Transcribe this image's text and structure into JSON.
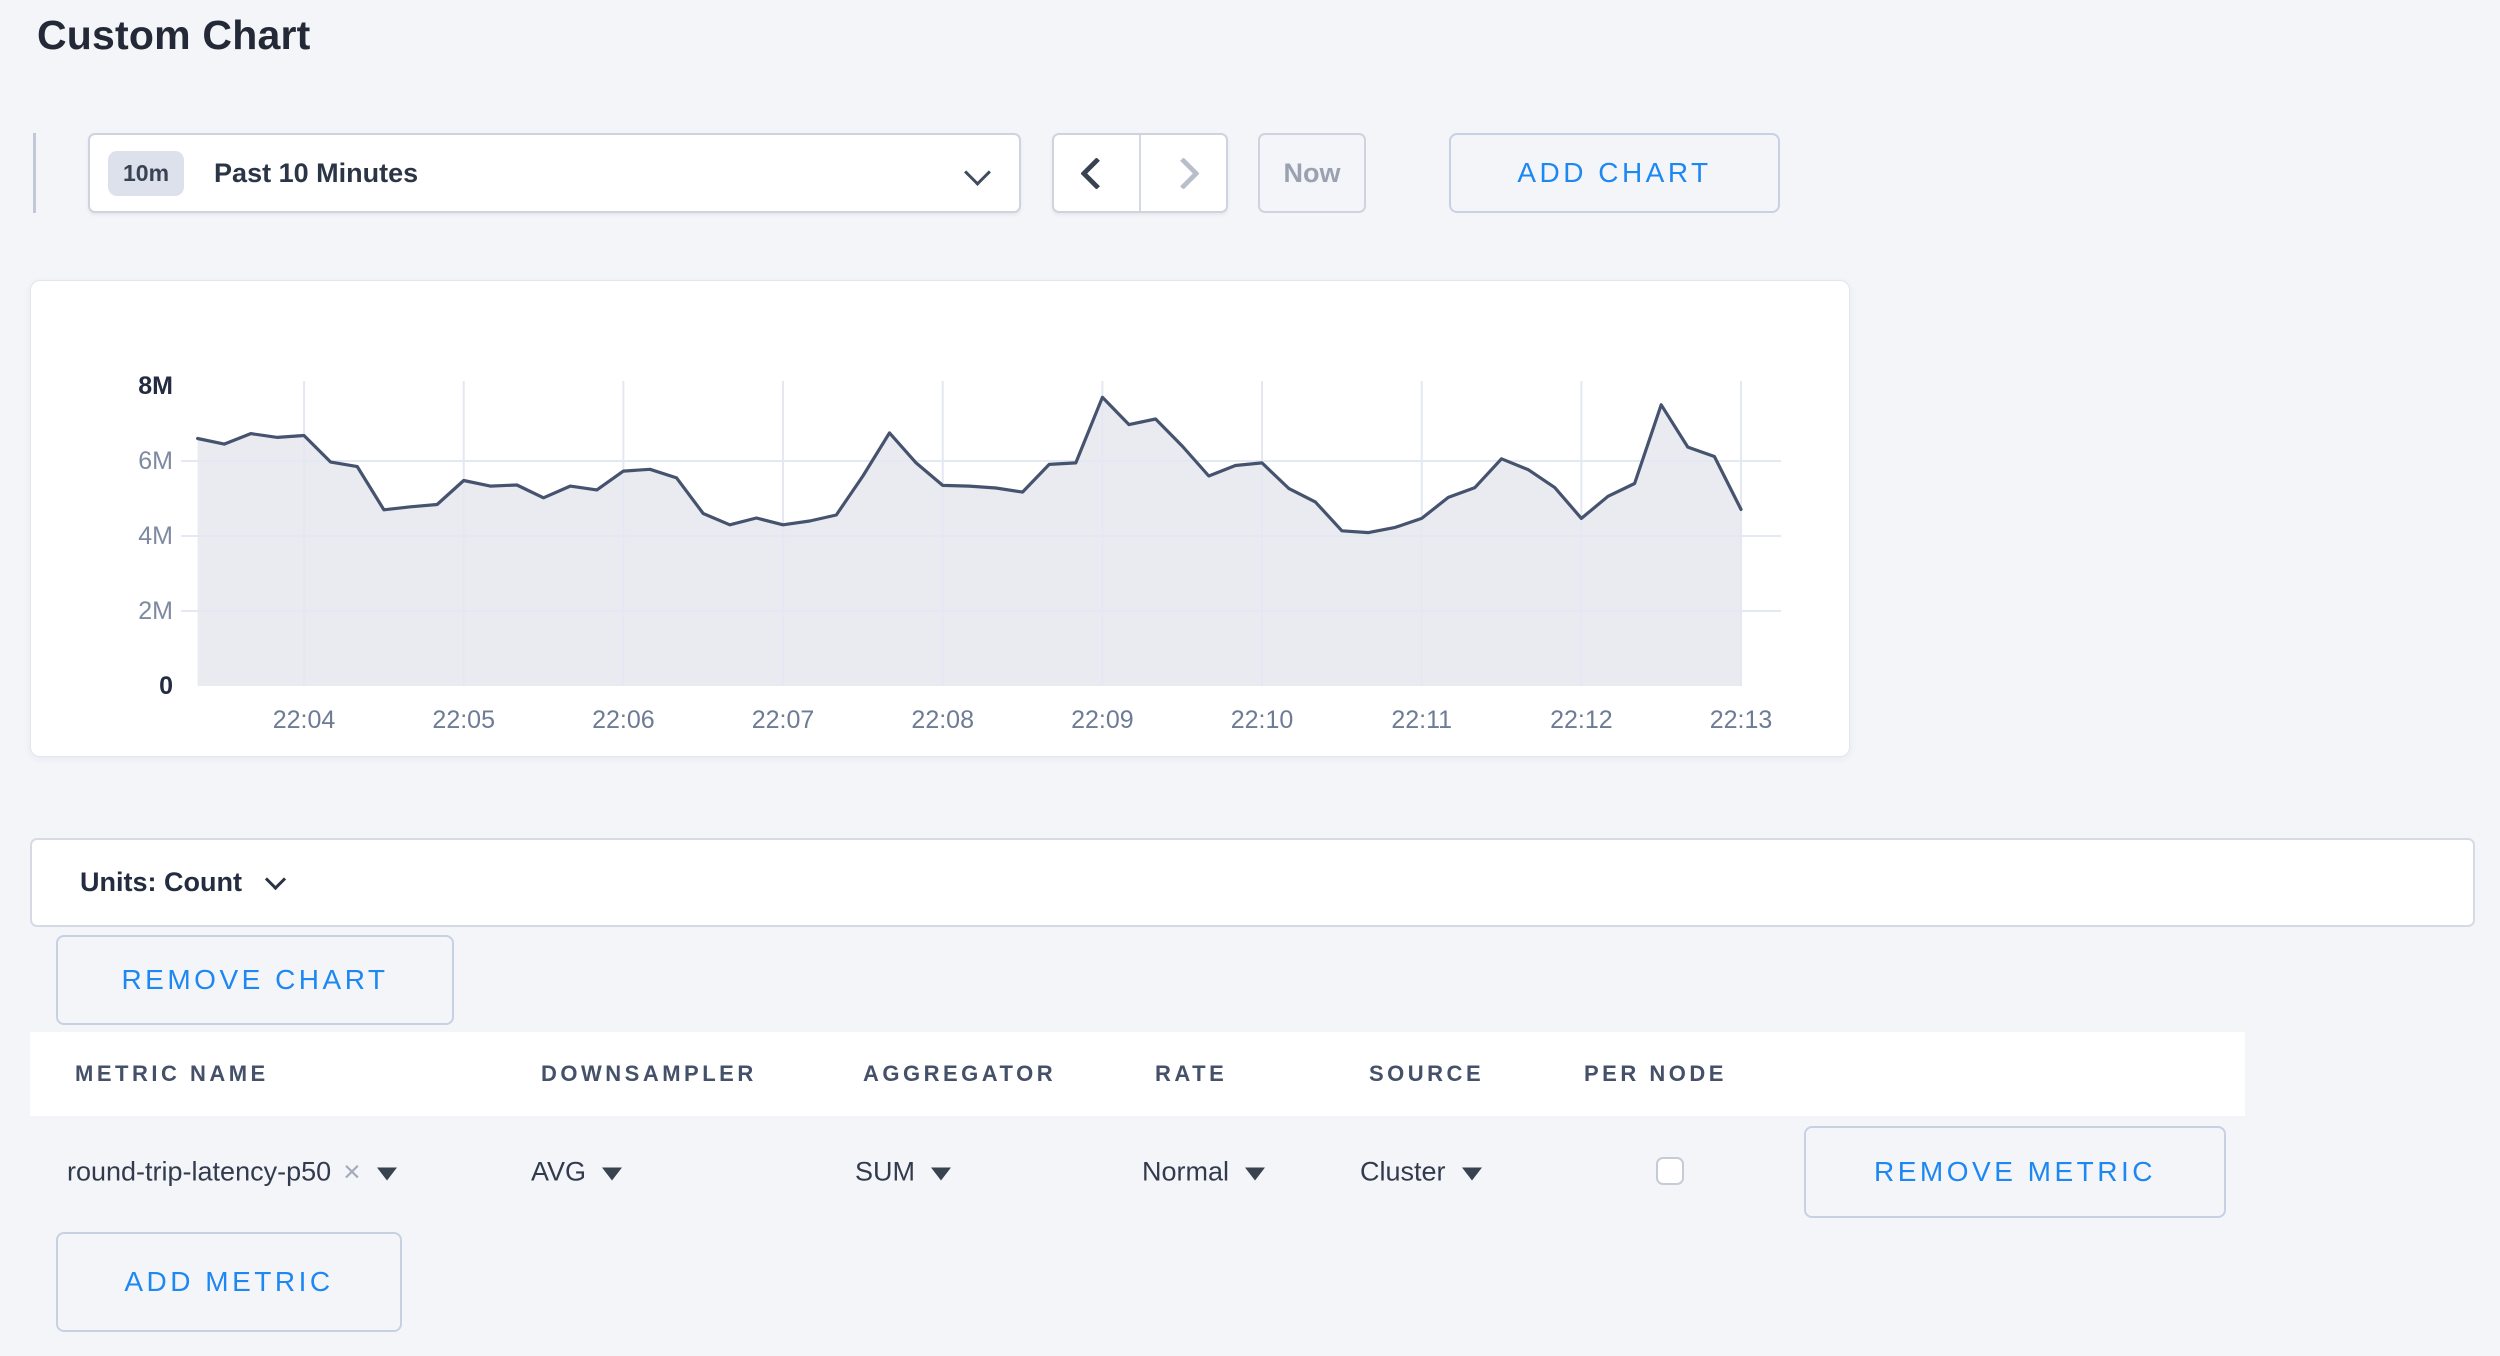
{
  "page": {
    "title": "Custom Chart",
    "background_color": "#f4f5f9",
    "accent_blue": "#1d87f2"
  },
  "toolbar": {
    "time_badge": "10m",
    "time_label": "Past 10 Minutes",
    "now_label": "Now",
    "add_chart_label": "ADD CHART"
  },
  "units_bar": {
    "label": "Units: Count"
  },
  "buttons": {
    "remove_chart": "REMOVE CHART",
    "remove_metric": "REMOVE METRIC",
    "add_metric": "ADD METRIC"
  },
  "icons": {
    "clear": "×"
  },
  "metrics_table": {
    "columns": [
      "METRIC NAME",
      "DOWNSAMPLER",
      "AGGREGATOR",
      "RATE",
      "SOURCE",
      "PER NODE"
    ],
    "rows": [
      {
        "metric_name": "round-trip-latency-p50",
        "downsampler": "AVG",
        "aggregator": "SUM",
        "rate": "Normal",
        "source": "Cluster",
        "per_node_checked": false
      }
    ]
  },
  "chart_data": {
    "type": "area",
    "title": "",
    "xlabel": "",
    "ylabel": "count",
    "start_time": "22:03:20",
    "interval_seconds": 10,
    "values_millions": [
      6.6,
      6.45,
      6.73,
      6.63,
      6.68,
      5.97,
      5.85,
      4.7,
      4.78,
      4.84,
      5.48,
      5.33,
      5.36,
      5.02,
      5.33,
      5.23,
      5.73,
      5.78,
      5.55,
      4.6,
      4.3,
      4.48,
      4.3,
      4.4,
      4.56,
      5.6,
      6.75,
      5.95,
      5.35,
      5.33,
      5.28,
      5.17,
      5.91,
      5.95,
      7.7,
      6.97,
      7.12,
      6.4,
      5.6,
      5.88,
      5.95,
      5.27,
      4.91,
      4.14,
      4.09,
      4.23,
      4.47,
      5.03,
      5.29,
      6.06,
      5.77,
      5.29,
      4.47,
      5.06,
      5.4,
      7.5,
      6.37,
      6.12,
      4.71
    ],
    "x_tick_labels": [
      "22:04",
      "22:05",
      "22:06",
      "22:07",
      "22:08",
      "22:09",
      "22:10",
      "22:11",
      "22:12",
      "22:13"
    ],
    "x_first_tick_offset_seconds": 40,
    "x_tick_interval_seconds": 60,
    "y_ticks": [
      {
        "label": "0",
        "value_millions": 0,
        "emphasis": true
      },
      {
        "label": "2M",
        "value_millions": 2,
        "emphasis": false
      },
      {
        "label": "4M",
        "value_millions": 4,
        "emphasis": false
      },
      {
        "label": "6M",
        "value_millions": 6,
        "emphasis": false
      },
      {
        "label": "8M",
        "value_millions": 8,
        "emphasis": true
      }
    ],
    "ylim_millions": [
      0,
      8.8
    ],
    "grid": true,
    "legend": "none",
    "colors": {
      "line": "#46536e",
      "fill": "#e9ebf0",
      "grid": "#e4e8f2",
      "y_tick_label": "#7e8aa1",
      "tick_label_emphasis": "#232c40",
      "x_tick_label": "#6e7b95"
    }
  }
}
